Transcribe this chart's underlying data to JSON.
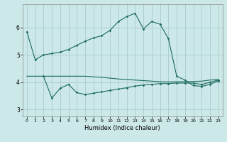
{
  "xlabel": "Humidex (Indice chaleur)",
  "bg_color": "#cce8e8",
  "grid_color": "#aacccc",
  "line_color": "#1a6b60",
  "xlim": [
    -0.5,
    23.5
  ],
  "ylim": [
    2.75,
    6.85
  ],
  "yticks": [
    3,
    4,
    5,
    6
  ],
  "xticks": [
    0,
    1,
    2,
    3,
    4,
    5,
    6,
    7,
    8,
    9,
    10,
    11,
    12,
    13,
    14,
    15,
    16,
    17,
    18,
    19,
    20,
    21,
    22,
    23
  ],
  "line1_x": [
    0,
    1,
    2,
    3,
    4,
    5,
    6,
    7,
    8,
    9,
    10,
    11,
    12,
    13,
    14,
    15,
    16,
    17,
    18,
    19,
    20,
    21,
    22,
    23
  ],
  "line1_y": [
    5.85,
    4.82,
    5.0,
    5.05,
    5.1,
    5.2,
    5.35,
    5.5,
    5.62,
    5.7,
    5.9,
    6.22,
    6.4,
    6.52,
    5.95,
    6.22,
    6.12,
    5.6,
    4.22,
    4.08,
    3.88,
    3.85,
    3.92,
    4.05
  ],
  "line2_x": [
    2,
    3,
    4,
    5,
    6,
    7,
    8,
    9,
    10,
    11,
    12,
    13,
    14,
    15,
    16,
    17,
    18,
    19,
    20,
    21,
    22,
    23
  ],
  "line2_y": [
    4.22,
    3.42,
    3.78,
    3.92,
    3.62,
    3.55,
    3.6,
    3.65,
    3.7,
    3.75,
    3.8,
    3.86,
    3.9,
    3.92,
    3.95,
    3.95,
    3.97,
    3.97,
    3.97,
    3.92,
    4.0,
    4.08
  ],
  "line3_x": [
    0,
    1,
    2,
    3,
    4,
    5,
    6,
    7,
    8,
    9,
    10,
    11,
    12,
    13,
    14,
    15,
    16,
    17,
    18,
    19,
    20,
    21,
    22,
    23
  ],
  "line3_y": [
    4.22,
    4.22,
    4.22,
    4.22,
    4.22,
    4.22,
    4.22,
    4.22,
    4.2,
    4.18,
    4.15,
    4.12,
    4.1,
    4.08,
    4.06,
    4.04,
    4.02,
    4.01,
    4.02,
    4.02,
    4.03,
    4.04,
    4.08,
    4.1
  ]
}
